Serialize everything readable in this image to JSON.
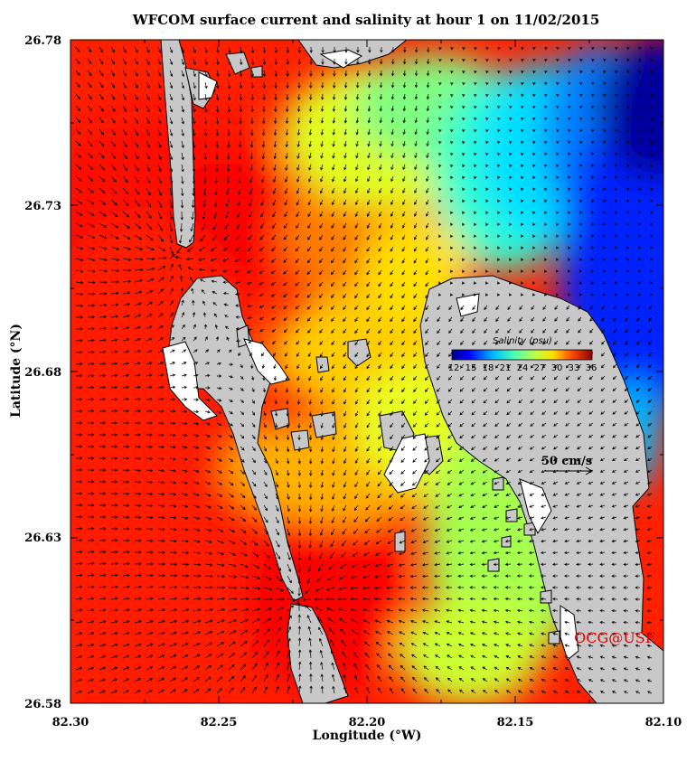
{
  "title": "WFCOM surface current and salinity at hour 1 on 11/02/2015",
  "axes": {
    "xlabel": "Longitude (°W)",
    "ylabel": "Latitude (°N)",
    "x_ticks": [
      "82.30",
      "82.25",
      "82.20",
      "82.15",
      "82.10"
    ],
    "y_ticks": [
      "26.78",
      "26.73",
      "26.68",
      "26.63",
      "26.58"
    ],
    "xlim": [
      82.3,
      82.1
    ],
    "ylim": [
      26.58,
      26.78
    ]
  },
  "colorbar": {
    "title": "Salinity (psu)",
    "ticks": [
      "12",
      "15",
      "18",
      "21",
      "24",
      "27",
      "30",
      "33",
      "36"
    ],
    "colors": [
      "#00008f",
      "#0000ff",
      "#0070ff",
      "#00dfff",
      "#50ffaf",
      "#bfff40",
      "#ffdf00",
      "#ff7000",
      "#ff0000",
      "#8f0000"
    ]
  },
  "scale_arrow": {
    "label": "50 cm/s"
  },
  "credit": "OCG@USF",
  "colors": {
    "land": "#c8c8c8",
    "dry": "#ffffff",
    "arrow": "#000000",
    "credit": "#e00000"
  }
}
